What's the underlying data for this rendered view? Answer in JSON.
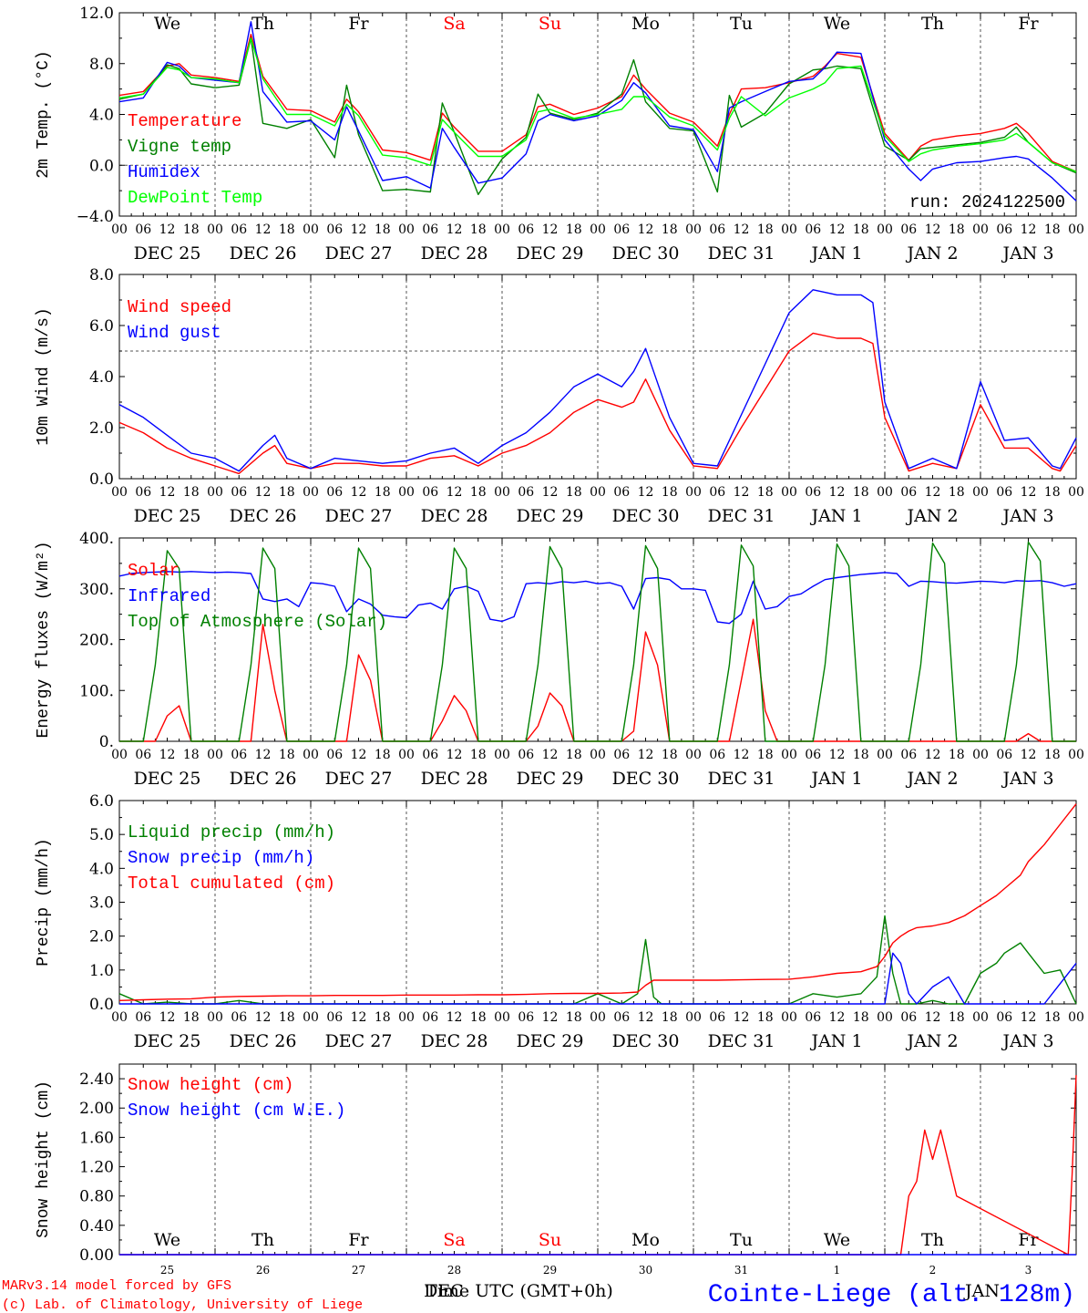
{
  "colors": {
    "red": "#ff0000",
    "green": "#008000",
    "blue": "#0000ff",
    "lime": "#00ff00",
    "grid": "#555555",
    "axis": "#000000"
  },
  "days": {
    "weekday_labels": [
      "We",
      "Th",
      "Fr",
      "Sa",
      "Su",
      "Mo",
      "Tu",
      "We",
      "Th",
      "Fr"
    ],
    "weekday_red": [
      false,
      false,
      false,
      true,
      true,
      false,
      false,
      false,
      false,
      false
    ],
    "hour_ticks": [
      "00",
      "06",
      "12",
      "18"
    ],
    "last_tick": "00",
    "date_labels": [
      "DEC 25",
      "DEC 26",
      "DEC 27",
      "DEC 28",
      "DEC 29",
      "DEC 30",
      "DEC 31",
      "JAN  1",
      "JAN  2",
      "JAN  3"
    ],
    "bottom_day_numbers": [
      "25",
      "26",
      "27",
      "28",
      "29",
      "30",
      "31",
      "1",
      "2",
      "3"
    ]
  },
  "footer": {
    "model_line": "MARv3.14 model forced by GFS",
    "copyright_line": "(c) Lab. of Climatology, University of Liege",
    "time_axis_label": "Time UTC (GMT+0h)",
    "month_label_dec": "DEC",
    "month_label_jan": "JAN",
    "station": "Cointe-Liege (alt. 128m)"
  },
  "chart_data": [
    {
      "type": "line",
      "title": "",
      "ylabel": "2m Temp. (°C)",
      "ylim": [
        -4,
        12
      ],
      "yticks": [
        "12.0",
        "8.0",
        "4.0",
        "0.0",
        "−4.0"
      ],
      "ytick_values": [
        12,
        8,
        4,
        0,
        -4
      ],
      "hline": 0,
      "annotation": "run: 2024122500",
      "x": [
        0,
        6,
        12,
        15,
        18,
        24,
        30,
        33,
        36,
        42,
        48,
        54,
        57,
        60,
        66,
        72,
        78,
        81,
        84,
        90,
        96,
        102,
        105,
        108,
        114,
        120,
        126,
        129,
        132,
        138,
        144,
        150,
        153,
        156,
        162,
        168,
        174,
        177,
        180,
        186,
        192,
        198,
        201,
        204,
        210,
        216,
        222,
        225,
        228,
        234,
        240
      ],
      "series": [
        {
          "name": "Temperature",
          "color": "red",
          "values": [
            5.5,
            5.8,
            7.8,
            8.0,
            7.1,
            6.9,
            6.6,
            10.3,
            7.0,
            4.4,
            4.3,
            3.4,
            5.2,
            4.2,
            1.2,
            1.0,
            0.4,
            4.1,
            3.0,
            1.1,
            1.1,
            2.4,
            4.6,
            4.8,
            4.0,
            4.5,
            5.4,
            7.1,
            6.0,
            4.1,
            3.4,
            1.5,
            4.0,
            6.0,
            6.1,
            6.5,
            7.0,
            7.8,
            8.8,
            8.5,
            2.5,
            0.4,
            1.5,
            2.0,
            2.3,
            2.5,
            2.9,
            3.3,
            2.5,
            0.3,
            -0.5
          ]
        },
        {
          "name": "Vigne temp",
          "color": "green",
          "values": [
            5.2,
            5.6,
            7.9,
            7.6,
            6.4,
            6.1,
            6.3,
            10.0,
            3.3,
            2.9,
            3.6,
            0.6,
            6.3,
            2.4,
            -2.0,
            -1.9,
            -2.1,
            4.9,
            2.6,
            -2.3,
            0.5,
            2.2,
            5.6,
            4.1,
            3.6,
            4.1,
            5.6,
            8.3,
            5.0,
            2.9,
            2.7,
            -2.1,
            5.5,
            3.0,
            4.1,
            6.4,
            7.5,
            7.6,
            7.8,
            7.6,
            1.5,
            0.4,
            1.3,
            1.4,
            1.6,
            1.8,
            2.2,
            3.0,
            1.8,
            0.2,
            -0.6
          ]
        },
        {
          "name": "Humidex",
          "color": "blue",
          "values": [
            5.0,
            5.3,
            8.1,
            7.8,
            6.9,
            6.7,
            6.5,
            11.3,
            5.8,
            3.4,
            3.5,
            2.0,
            4.6,
            2.7,
            -1.2,
            -0.9,
            -1.8,
            2.9,
            1.4,
            -1.4,
            -1.0,
            0.9,
            3.5,
            4.0,
            3.5,
            3.9,
            5.1,
            6.5,
            5.7,
            3.1,
            2.8,
            -0.5,
            4.5,
            5.0,
            5.8,
            6.6,
            6.8,
            7.7,
            8.9,
            8.8,
            2.0,
            -0.3,
            -1.2,
            -0.3,
            0.2,
            0.3,
            0.6,
            0.7,
            0.5,
            -1.0,
            -2.8
          ]
        },
        {
          "name": "DewPoint Temp",
          "color": "lime",
          "values": [
            5.3,
            5.6,
            7.7,
            7.5,
            6.9,
            6.8,
            6.5,
            10.0,
            6.8,
            4.0,
            4.0,
            3.1,
            4.8,
            3.9,
            0.8,
            0.6,
            0.0,
            3.6,
            2.6,
            0.7,
            0.7,
            2.0,
            4.2,
            4.4,
            3.7,
            4.0,
            4.4,
            5.4,
            5.4,
            3.8,
            3.1,
            1.2,
            3.7,
            5.4,
            3.9,
            5.3,
            6.0,
            6.5,
            7.6,
            7.8,
            2.3,
            0.3,
            0.9,
            1.2,
            1.5,
            1.7,
            2.0,
            2.5,
            1.8,
            0.2,
            -0.5
          ]
        }
      ]
    },
    {
      "type": "line",
      "title": "",
      "ylabel": "10m Wind (m/s)",
      "ylim": [
        0,
        8
      ],
      "yticks": [
        "8.0",
        "6.0",
        "4.0",
        "2.0",
        "0.0"
      ],
      "ytick_values": [
        8,
        6,
        4,
        2,
        0
      ],
      "hline": 5,
      "x": [
        0,
        6,
        12,
        18,
        24,
        30,
        36,
        39,
        42,
        48,
        54,
        60,
        66,
        72,
        78,
        84,
        90,
        96,
        102,
        108,
        114,
        120,
        126,
        129,
        132,
        138,
        144,
        150,
        156,
        162,
        168,
        174,
        180,
        186,
        189,
        192,
        198,
        204,
        210,
        216,
        222,
        228,
        234,
        236,
        240
      ],
      "series": [
        {
          "name": "Wind speed",
          "color": "red",
          "values": [
            2.2,
            1.8,
            1.2,
            0.8,
            0.5,
            0.2,
            1.0,
            1.3,
            0.6,
            0.4,
            0.6,
            0.6,
            0.5,
            0.5,
            0.8,
            0.9,
            0.5,
            1.0,
            1.3,
            1.8,
            2.6,
            3.1,
            2.8,
            3.0,
            3.9,
            1.9,
            0.5,
            0.4,
            2.0,
            3.5,
            5.0,
            5.7,
            5.5,
            5.5,
            5.3,
            2.4,
            0.3,
            0.6,
            0.4,
            2.9,
            1.2,
            1.2,
            0.4,
            0.3,
            1.3
          ]
        },
        {
          "name": "Wind gust",
          "color": "blue",
          "values": [
            2.9,
            2.4,
            1.7,
            1.0,
            0.8,
            0.3,
            1.3,
            1.7,
            0.8,
            0.4,
            0.8,
            0.7,
            0.6,
            0.7,
            1.0,
            1.2,
            0.6,
            1.3,
            1.8,
            2.6,
            3.6,
            4.1,
            3.6,
            4.2,
            5.1,
            2.4,
            0.6,
            0.5,
            2.5,
            4.5,
            6.5,
            7.4,
            7.2,
            7.2,
            6.9,
            3.0,
            0.4,
            0.8,
            0.4,
            3.8,
            1.5,
            1.6,
            0.5,
            0.4,
            1.6
          ]
        }
      ]
    },
    {
      "type": "line",
      "title": "",
      "ylabel": "Energy fluxes (W/m²)",
      "ylim": [
        0,
        400
      ],
      "yticks": [
        "400.",
        "300.",
        "200.",
        "100.",
        "0."
      ],
      "ytick_values": [
        400,
        300,
        200,
        100,
        0
      ],
      "x": [
        0,
        3,
        6,
        9,
        12,
        15,
        18,
        21,
        24,
        27,
        30,
        33,
        36,
        39,
        42,
        45,
        48,
        51,
        54,
        57,
        60,
        63,
        66,
        69,
        72,
        75,
        78,
        81,
        84,
        87,
        90,
        93,
        96,
        99,
        102,
        105,
        108,
        111,
        114,
        117,
        120,
        123,
        126,
        129,
        132,
        135,
        138,
        141,
        144,
        147,
        150,
        153,
        156,
        159,
        162,
        165,
        168,
        171,
        174,
        177,
        180,
        183,
        186,
        189,
        192,
        195,
        198,
        201,
        204,
        207,
        210,
        213,
        216,
        219,
        222,
        225,
        228,
        231,
        234,
        237,
        240
      ],
      "series": [
        {
          "name": "Solar",
          "color": "red",
          "values": [
            0,
            0,
            0,
            0,
            50,
            70,
            0,
            0,
            0,
            0,
            0,
            0,
            230,
            100,
            0,
            0,
            0,
            0,
            0,
            0,
            170,
            120,
            0,
            0,
            0,
            0,
            0,
            40,
            90,
            60,
            0,
            0,
            0,
            0,
            0,
            30,
            95,
            70,
            0,
            0,
            0,
            0,
            0,
            20,
            215,
            150,
            0,
            0,
            0,
            0,
            0,
            0,
            120,
            240,
            60,
            0,
            0,
            0,
            0,
            0,
            0,
            0,
            0,
            0,
            0,
            0,
            0,
            0,
            0,
            0,
            0,
            0,
            0,
            0,
            0,
            0,
            15,
            0,
            0,
            0,
            0
          ]
        },
        {
          "name": "Infrared",
          "color": "blue",
          "values": [
            325,
            330,
            332,
            333,
            334,
            333,
            334,
            333,
            332,
            333,
            332,
            330,
            280,
            275,
            280,
            265,
            312,
            310,
            305,
            255,
            280,
            270,
            248,
            245,
            243,
            268,
            272,
            260,
            300,
            305,
            295,
            240,
            236,
            245,
            310,
            312,
            310,
            314,
            312,
            315,
            310,
            312,
            305,
            260,
            320,
            322,
            318,
            300,
            300,
            297,
            235,
            232,
            250,
            315,
            260,
            265,
            285,
            290,
            305,
            318,
            322,
            325,
            328,
            330,
            332,
            330,
            305,
            315,
            314,
            312,
            311,
            313,
            315,
            314,
            312,
            316,
            315,
            316,
            312,
            305,
            310
          ]
        },
        {
          "name": "Top of Atmosphere (Solar)",
          "color": "green",
          "values": [
            0,
            0,
            0,
            150,
            375,
            340,
            0,
            0,
            0,
            0,
            0,
            150,
            380,
            340,
            0,
            0,
            0,
            0,
            0,
            150,
            380,
            340,
            0,
            0,
            0,
            0,
            0,
            150,
            380,
            340,
            0,
            0,
            0,
            0,
            0,
            150,
            383,
            340,
            0,
            0,
            0,
            0,
            0,
            150,
            385,
            340,
            0,
            0,
            0,
            0,
            0,
            150,
            386,
            345,
            0,
            0,
            0,
            0,
            0,
            150,
            388,
            345,
            0,
            0,
            0,
            0,
            0,
            150,
            390,
            350,
            0,
            0,
            0,
            0,
            0,
            150,
            392,
            355,
            0,
            0,
            0
          ]
        }
      ]
    },
    {
      "type": "line",
      "title": "",
      "ylabel": "Precip (mm/h)",
      "ylim": [
        0,
        6
      ],
      "yticks": [
        "6.0",
        "5.0",
        "4.0",
        "3.0",
        "2.0",
        "1.0",
        "0.0"
      ],
      "ytick_values": [
        6,
        5,
        4,
        3,
        2,
        1,
        0
      ],
      "x": [
        0,
        6,
        12,
        18,
        24,
        30,
        36,
        42,
        48,
        54,
        60,
        66,
        72,
        78,
        84,
        90,
        96,
        102,
        108,
        114,
        120,
        126,
        130,
        132,
        134,
        136,
        138,
        144,
        150,
        156,
        162,
        168,
        174,
        180,
        186,
        190,
        192,
        194,
        196,
        198,
        200,
        204,
        208,
        212,
        216,
        220,
        222,
        226,
        228,
        232,
        236,
        240
      ],
      "series": [
        {
          "name": "Liquid precip (mm/h)",
          "color": "green",
          "values": [
            0.3,
            0.0,
            0.05,
            0.0,
            0.0,
            0.1,
            0.0,
            0.0,
            0.0,
            0.0,
            0.0,
            0.0,
            0.0,
            0.0,
            0.0,
            0.0,
            0.0,
            0.0,
            0.0,
            0.0,
            0.3,
            0.0,
            0.3,
            1.9,
            0.2,
            0.0,
            0.0,
            0.0,
            0.0,
            0.0,
            0.0,
            0.0,
            0.3,
            0.2,
            0.3,
            0.8,
            2.6,
            0.9,
            0.0,
            0.0,
            0.0,
            0.1,
            0.0,
            0.0,
            0.9,
            1.2,
            1.5,
            1.8,
            1.5,
            0.9,
            1.0,
            0.0
          ]
        },
        {
          "name": "Snow precip (mm/h)",
          "color": "blue",
          "values": [
            0,
            0,
            0,
            0,
            0,
            0,
            0,
            0,
            0,
            0,
            0,
            0,
            0,
            0,
            0,
            0,
            0,
            0,
            0,
            0,
            0,
            0,
            0,
            0,
            0,
            0,
            0,
            0,
            0,
            0,
            0,
            0,
            0,
            0,
            0,
            0,
            0,
            1.5,
            1.2,
            0.3,
            0,
            0.5,
            0.8,
            0,
            0,
            0,
            0,
            0,
            0,
            0,
            0.6,
            1.2
          ]
        },
        {
          "name": "Total cumulated (cm)",
          "color": "red",
          "values": [
            0.1,
            0.12,
            0.14,
            0.15,
            0.2,
            0.22,
            0.23,
            0.24,
            0.24,
            0.25,
            0.25,
            0.25,
            0.26,
            0.26,
            0.26,
            0.27,
            0.27,
            0.28,
            0.3,
            0.31,
            0.31,
            0.32,
            0.35,
            0.55,
            0.7,
            0.7,
            0.7,
            0.7,
            0.7,
            0.71,
            0.72,
            0.73,
            0.8,
            0.9,
            0.95,
            1.1,
            1.4,
            1.8,
            2.0,
            2.15,
            2.25,
            2.3,
            2.4,
            2.6,
            2.9,
            3.2,
            3.4,
            3.8,
            4.2,
            4.7,
            5.3,
            5.9
          ]
        }
      ]
    },
    {
      "type": "line",
      "title": "",
      "ylabel": "Snow height (cm)",
      "ylim": [
        0,
        2.6
      ],
      "yticks": [
        "2.40",
        "2.00",
        "1.60",
        "1.20",
        "0.80",
        "0.40",
        "0.00"
      ],
      "ytick_values": [
        2.4,
        2.0,
        1.6,
        1.2,
        0.8,
        0.4,
        0.0
      ],
      "x": [
        0,
        180,
        196,
        198,
        200,
        202,
        204,
        206,
        210,
        238,
        239,
        240
      ],
      "series": [
        {
          "name": "Snow height (cm)",
          "color": "red",
          "values": [
            0,
            0,
            0,
            0.8,
            1.0,
            1.7,
            1.3,
            1.7,
            0.8,
            0,
            1.1,
            2.45
          ]
        },
        {
          "name": "Snow height (cm W.E.)",
          "color": "blue",
          "values": [
            0,
            0,
            0,
            0,
            0,
            0,
            0,
            0,
            0,
            0,
            0,
            0
          ]
        }
      ]
    }
  ]
}
